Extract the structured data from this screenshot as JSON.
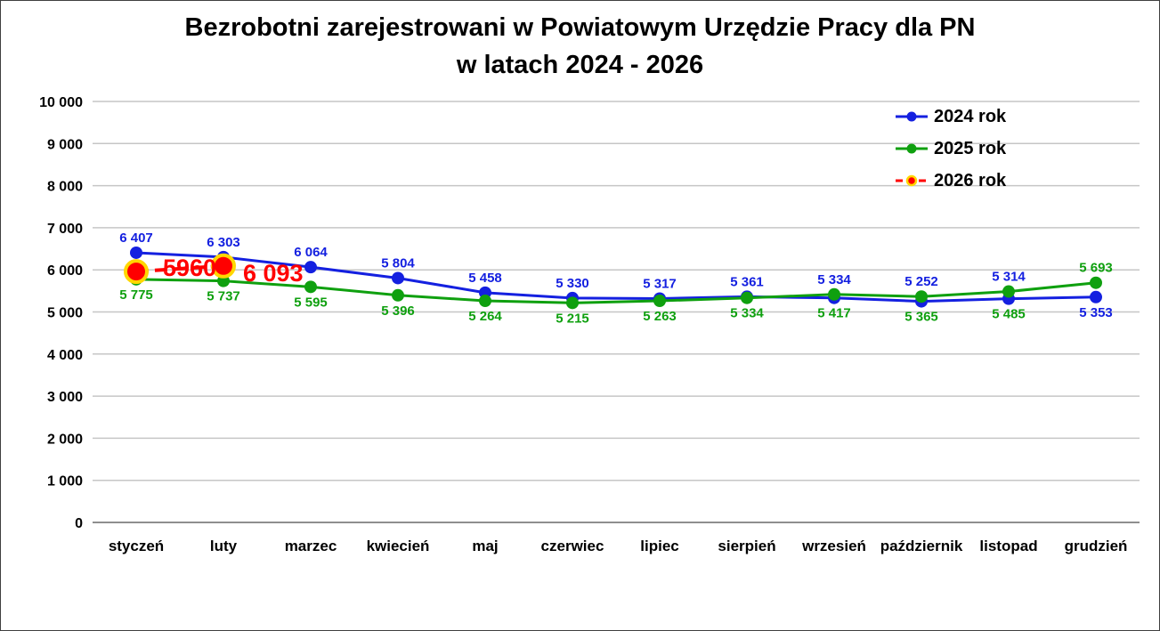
{
  "chart_data": {
    "type": "line",
    "title": "Bezrobotni zarejestrowani w Powiatowym Urzędzie Pracy dla PN",
    "title_line2": "w latach 2024 - 2026",
    "categories": [
      "styczeń",
      "luty",
      "marzec",
      "kwiecień",
      "maj",
      "czerwiec",
      "lipiec",
      "sierpień",
      "wrzesień",
      "październik",
      "listopad",
      "grudzień"
    ],
    "xlabel": "",
    "ylabel": "",
    "ylim": [
      0,
      10000
    ],
    "ytick_step": 1000,
    "ytick_labels": [
      "0",
      "1 000",
      "2 000",
      "3 000",
      "4 000",
      "5 000",
      "6 000",
      "7 000",
      "8 000",
      "9 000",
      "10 000"
    ],
    "grid": "horizontal",
    "legend_position": "top-right-inside",
    "colors": {
      "background": "#FFFFFF",
      "gridline": "#C6C6C6",
      "axis_line": "#8E8E8E",
      "text": "#000000"
    },
    "series": [
      {
        "name": "2024 rok",
        "color": "#1420E0",
        "line_style": "solid",
        "marker": "circle",
        "values": [
          6407,
          6303,
          6064,
          5804,
          5458,
          5330,
          5317,
          5361,
          5334,
          5252,
          5314,
          5353
        ],
        "labels": [
          "6 407",
          "6 303",
          "6 064",
          "5 804",
          "5 458",
          "5 330",
          "5 317",
          "5 361",
          "5 334",
          "5 252",
          "5 314",
          "5 353"
        ],
        "label_sides": [
          "above",
          "above",
          "above",
          "above",
          "above",
          "above",
          "above",
          "above",
          "above",
          "above",
          "above",
          "below"
        ]
      },
      {
        "name": "2025 rok",
        "color": "#0FA00F",
        "line_style": "solid",
        "marker": "circle",
        "values": [
          5775,
          5737,
          5595,
          5396,
          5264,
          5215,
          5263,
          5334,
          5417,
          5365,
          5485,
          5693
        ],
        "labels": [
          "5 775",
          "5 737",
          "5 595",
          "5 396",
          "5 264",
          "5 215",
          "5 263",
          "5 334",
          "5 417",
          "5 365",
          "5 485",
          "5 693"
        ],
        "label_sides": [
          "below",
          "below",
          "below",
          "below",
          "below",
          "below",
          "below",
          "below",
          "below",
          "below",
          "below",
          "above"
        ]
      },
      {
        "name": "2026 rok",
        "color": "#FF0000",
        "marker_ring_color": "#FFD700",
        "line_style": "dashed",
        "marker": "circle-large",
        "values": [
          5960,
          6093,
          null,
          null,
          null,
          null,
          null,
          null,
          null,
          null,
          null,
          null
        ],
        "labels": [
          "5960",
          "6 093"
        ],
        "label_style": "large"
      }
    ]
  }
}
